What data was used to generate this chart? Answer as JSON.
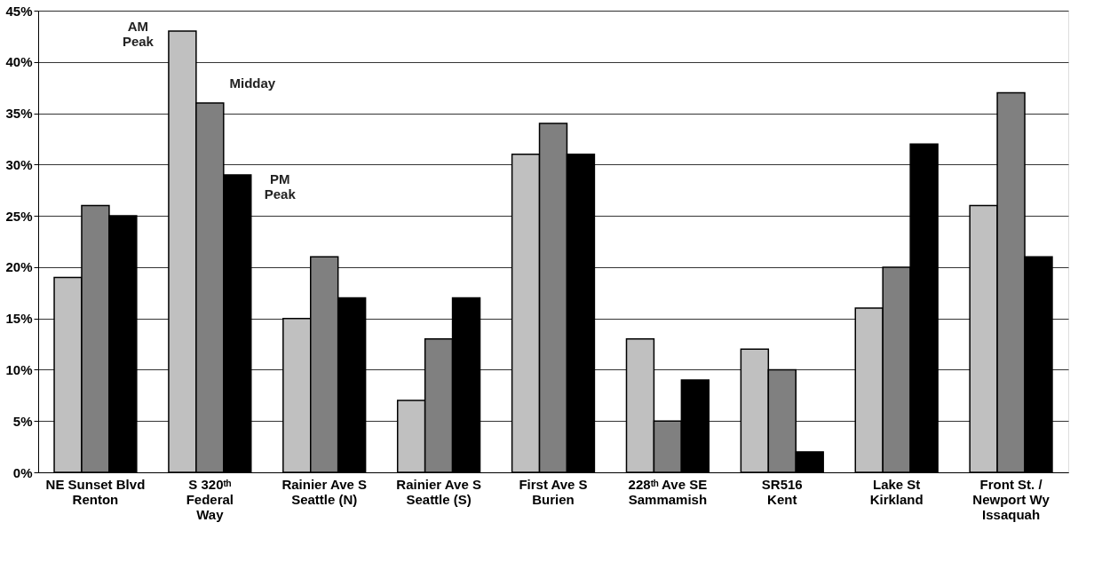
{
  "chart_data": {
    "type": "bar",
    "categories": [
      "NE Sunset Blvd\nRenton",
      "S 320ᵗʰ\nFederal\nWay",
      "Rainier Ave S\nSeattle (N)",
      "Rainier Ave S\nSeattle (S)",
      "First Ave S\nBurien",
      "228ᵗʰ Ave SE\nSammamish",
      "SR516\nKent",
      "Lake St\nKirkland",
      "Front St. /\nNewport Wy\nIssaquah"
    ],
    "series": [
      {
        "name": "AM\nPeak",
        "color": "#c0c0c0",
        "values": [
          19,
          43,
          15,
          7,
          31,
          13,
          12,
          16,
          26
        ]
      },
      {
        "name": "Midday",
        "color": "#808080",
        "values": [
          26,
          36,
          21,
          13,
          34,
          5,
          10,
          20,
          37
        ]
      },
      {
        "name": "PM\nPeak",
        "color": "#000000",
        "values": [
          25,
          29,
          17,
          17,
          31,
          9,
          2,
          32,
          21
        ]
      }
    ],
    "ylim": [
      0,
      45
    ],
    "yticks": [
      {
        "value": 0,
        "label": "0%"
      },
      {
        "value": 5,
        "label": "5%"
      },
      {
        "value": 10,
        "label": "10%"
      },
      {
        "value": 15,
        "label": "15%"
      },
      {
        "value": 20,
        "label": "20%"
      },
      {
        "value": 25,
        "label": "25%"
      },
      {
        "value": 30,
        "label": "30%"
      },
      {
        "value": 35,
        "label": "35%"
      },
      {
        "value": 40,
        "label": "40%"
      },
      {
        "value": 45,
        "label": "45%"
      }
    ],
    "grid": "y",
    "legend": false
  }
}
